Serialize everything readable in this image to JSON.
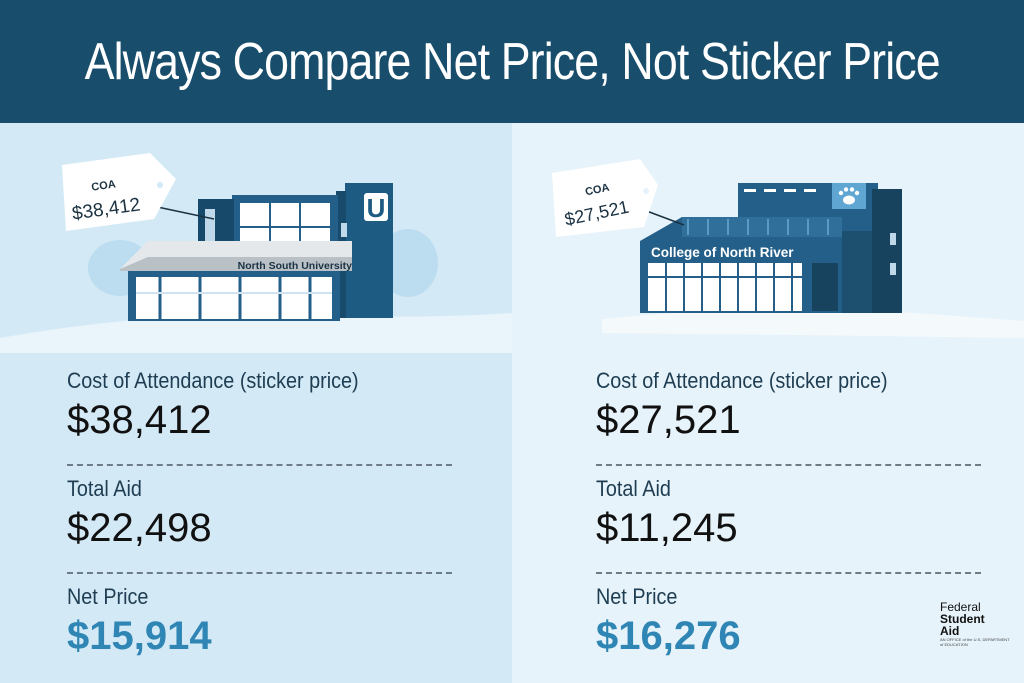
{
  "header": {
    "title": "Always Compare Net Price, Not Sticker Price"
  },
  "schools": [
    {
      "name": "North South University",
      "tag_label": "COA",
      "tag_value": "$38,412",
      "sign_glyph": "U",
      "rows": [
        {
          "label": "Cost of Attendance (sticker price)",
          "value": "$38,412"
        },
        {
          "label": "Total Aid",
          "value": "$22,498"
        },
        {
          "label": "Net Price",
          "value": "$15,914"
        }
      ]
    },
    {
      "name": "College of North River",
      "tag_label": "COA",
      "tag_value": "$27,521",
      "sign_glyph": "paw-icon",
      "rows": [
        {
          "label": "Cost of Attendance (sticker price)",
          "value": "$27,521"
        },
        {
          "label": "Total Aid",
          "value": "$11,245"
        },
        {
          "label": "Net Price",
          "value": "$16,276"
        }
      ]
    }
  ],
  "logo": {
    "line1": "Federal",
    "line2": "Student",
    "line3": "Aid",
    "line4": "AN OFFICE of the U.S. DEPARTMENT of EDUCATION"
  },
  "colors": {
    "header": "#184e6b",
    "accent": "#2f86b4",
    "left_panel": "#d4e9f6",
    "right_panel": "#e6f3fa"
  }
}
